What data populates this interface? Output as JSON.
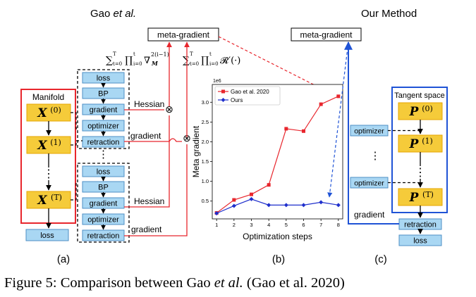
{
  "panel_a": {
    "top_label_prefix": "Gao ",
    "top_label_italic": "et al.",
    "meta_gradient": "meta-gradient",
    "formula_hessian": "Σ_{t=0}^{T} Π_{i=0}^{t} ∇²_M^{(i-1)}",
    "formula_hessian_parts": {
      "sum": "∑",
      "sum_sub": "t=0",
      "sum_sup": "T",
      "prod": "∏",
      "prod_sub": "i=0",
      "prod_sup": "t",
      "nabla": "∇",
      "nabla_sup": "2(i−1)",
      "nabla_sub": "M"
    },
    "formula_retraction": "Σ_{t=0}^{T} Π_{i=0}^{t} R'(·)",
    "formula_retraction_parts": {
      "sum": "∑",
      "sum_sub": "t=0",
      "sum_sup": "T",
      "prod": "∏",
      "prod_sub": "i=0",
      "prod_sup": "t",
      "tail": "𝓡′(·)"
    },
    "manifold_title": "Manifold",
    "x_var": "X",
    "states": [
      "(0)",
      "(1)",
      "(T)"
    ],
    "loss": "loss",
    "group1": [
      "loss",
      "BP",
      "gradient",
      "optimizer",
      "retraction"
    ],
    "group2": [
      "loss",
      "BP",
      "gradient",
      "optimizer",
      "retraction"
    ],
    "hessian_label": "Hessian",
    "gradient_label": "gradient",
    "otimes": "⊗",
    "ellipsis": "⋮",
    "panel_letter": "(a)"
  },
  "panel_b": {
    "panel_letter": "(b)"
  },
  "panel_c": {
    "title": "Our Method",
    "meta_gradient": "meta-gradient",
    "tangent_title": "Tangent space",
    "p_var": "P",
    "states": [
      "(0)",
      "(1)",
      "(T)"
    ],
    "optimizer_label": "optimizer",
    "gradient_label": "gradient",
    "retraction": "retraction",
    "loss": "loss",
    "ellipsis": "⋮",
    "panel_letter": "(c)"
  },
  "chart_data": {
    "type": "line",
    "x": [
      1,
      2,
      3,
      4,
      5,
      6,
      7,
      8
    ],
    "series": [
      {
        "name": "Gao et al. 2020",
        "values": [
          0.2,
          0.53,
          0.67,
          0.91,
          2.33,
          2.27,
          2.95,
          3.15
        ],
        "color": "#e8262d",
        "marker": "square"
      },
      {
        "name": "Ours",
        "values": [
          0.19,
          0.38,
          0.55,
          0.4,
          0.4,
          0.4,
          0.47,
          0.4
        ],
        "color": "#1f2fcc",
        "marker": "diamond"
      }
    ],
    "xlabel": "Optimization steps",
    "ylabel": "Meta gradient",
    "scale_label": "1e6",
    "xlim": [
      0.75,
      8.25
    ],
    "ylim": [
      0.05,
      3.45
    ],
    "yticks": [
      0.5,
      1.0,
      1.5,
      2.0,
      2.5,
      3.0
    ],
    "ytick_labels": [
      "0.5",
      "1.0",
      "1.5",
      "2.0",
      "2.5",
      "3.0"
    ],
    "xticks": [
      1,
      2,
      3,
      4,
      5,
      6,
      7,
      8
    ],
    "grid": false,
    "legend": "top-left"
  },
  "caption": {
    "prefix": "Figure 5: Comparison between Gao ",
    "italic": "et al.",
    "suffix": " (Gao et al. 2020)"
  },
  "colors": {
    "red": "#e8262d",
    "blue": "#1f53d6",
    "box_yellow": "#f5cb3a",
    "box_yellow_border": "#e6a600",
    "box_light_blue": "#a9d7f3",
    "box_light_blue_border": "#4e8fc4"
  }
}
